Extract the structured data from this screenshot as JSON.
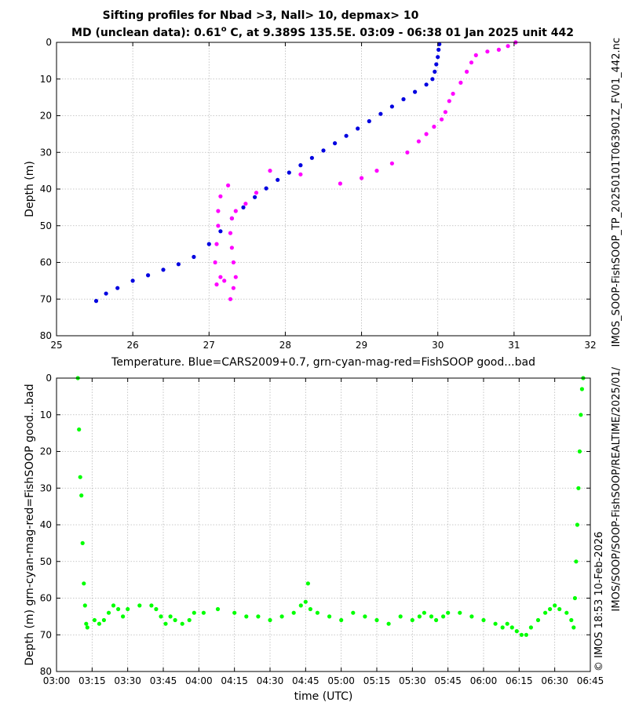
{
  "chart_data": [
    {
      "type": "scatter",
      "title_line1": "Sifting profiles for Nbad >3, Nall> 10, depmax> 10",
      "title_line2_pre": "MD (unclean data): 0.61",
      "title_line2_sup": "o",
      "title_line2_post": " C, at 9.389S 135.5E. 03:09 - 06:38 01 Jan 2025 unit 442",
      "xlabel": "Temperature. Blue=CARS2009+0.7, grn-cyan-mag-red=FishSOOP good...bad",
      "ylabel": "Depth (m)",
      "xlim": [
        25,
        32
      ],
      "ylim": [
        80,
        0
      ],
      "xticks": [
        "25",
        "26",
        "27",
        "28",
        "29",
        "30",
        "31",
        "32"
      ],
      "yticks": [
        "0",
        "10",
        "20",
        "30",
        "40",
        "50",
        "60",
        "70",
        "80"
      ],
      "grid": true,
      "series": [
        {
          "name": "CARS2009+0.7",
          "color": "#0000e0",
          "points": [
            [
              30.02,
              0.5
            ],
            [
              30.01,
              2
            ],
            [
              30.0,
              4
            ],
            [
              29.98,
              6
            ],
            [
              29.96,
              8
            ],
            [
              29.93,
              10
            ],
            [
              29.85,
              11.5
            ],
            [
              29.7,
              13.5
            ],
            [
              29.55,
              15.5
            ],
            [
              29.4,
              17.5
            ],
            [
              29.25,
              19.5
            ],
            [
              29.1,
              21.5
            ],
            [
              28.95,
              23.5
            ],
            [
              28.8,
              25.5
            ],
            [
              28.65,
              27.5
            ],
            [
              28.5,
              29.5
            ],
            [
              28.35,
              31.5
            ],
            [
              28.2,
              33.5
            ],
            [
              28.05,
              35.5
            ],
            [
              27.9,
              37.5
            ],
            [
              27.75,
              39.8
            ],
            [
              27.6,
              42.2
            ],
            [
              27.45,
              45
            ],
            [
              27.3,
              48
            ],
            [
              27.15,
              51.5
            ],
            [
              27.0,
              55
            ],
            [
              26.8,
              58.5
            ],
            [
              26.6,
              60.5
            ],
            [
              26.4,
              62
            ],
            [
              26.2,
              63.5
            ],
            [
              26.0,
              65
            ],
            [
              25.8,
              67
            ],
            [
              25.65,
              68.5
            ],
            [
              25.52,
              70.5
            ]
          ]
        },
        {
          "name": "FishSOOP profile",
          "color": "#ff00ff",
          "points": [
            [
              31.02,
              0
            ],
            [
              30.92,
              1
            ],
            [
              30.8,
              2
            ],
            [
              30.65,
              2.5
            ],
            [
              30.5,
              3.5
            ],
            [
              30.44,
              5.5
            ],
            [
              30.38,
              8
            ],
            [
              30.3,
              11
            ],
            [
              30.2,
              14
            ],
            [
              30.15,
              16
            ],
            [
              30.1,
              19
            ],
            [
              30.05,
              21
            ],
            [
              29.95,
              23
            ],
            [
              29.85,
              25
            ],
            [
              29.75,
              27
            ],
            [
              29.6,
              30
            ],
            [
              29.4,
              33
            ],
            [
              29.2,
              35
            ],
            [
              29.0,
              37
            ],
            [
              28.72,
              38.5
            ],
            [
              28.2,
              36
            ],
            [
              27.8,
              35
            ],
            [
              27.62,
              41
            ],
            [
              27.48,
              44
            ],
            [
              27.35,
              46
            ],
            [
              27.3,
              48
            ],
            [
              27.28,
              52
            ],
            [
              27.3,
              56
            ],
            [
              27.32,
              60
            ],
            [
              27.35,
              64
            ],
            [
              27.32,
              67
            ],
            [
              27.28,
              70
            ],
            [
              27.2,
              65
            ],
            [
              27.15,
              64
            ],
            [
              27.1,
              66
            ],
            [
              27.08,
              60
            ],
            [
              27.1,
              55
            ],
            [
              27.12,
              50
            ],
            [
              27.12,
              46
            ],
            [
              27.15,
              42
            ],
            [
              27.25,
              39
            ]
          ]
        }
      ]
    },
    {
      "type": "scatter",
      "xlabel": "time (UTC)",
      "ylabel": "Depth (m) grn-cyan-mag-red=FishSOOP good...bad",
      "xlim": [
        0,
        225
      ],
      "ylim": [
        80,
        0
      ],
      "xticks": [
        "03:00",
        "03:15",
        "03:30",
        "03:45",
        "04:00",
        "04:15",
        "04:30",
        "04:45",
        "05:00",
        "05:15",
        "05:30",
        "05:45",
        "06:00",
        "06:15",
        "06:30",
        "06:45"
      ],
      "yticks": [
        "0",
        "10",
        "20",
        "30",
        "40",
        "50",
        "60",
        "70",
        "80"
      ],
      "grid": true,
      "series": [
        {
          "name": "FishSOOP good",
          "color": "#00ff00",
          "points": [
            [
              9,
              0
            ],
            [
              9.5,
              14
            ],
            [
              10,
              27
            ],
            [
              10.5,
              32
            ],
            [
              11,
              45
            ],
            [
              11.5,
              56
            ],
            [
              12,
              62
            ],
            [
              12.5,
              67
            ],
            [
              13,
              68
            ],
            [
              16,
              66
            ],
            [
              18,
              67
            ],
            [
              20,
              66
            ],
            [
              22,
              64
            ],
            [
              24,
              62
            ],
            [
              26,
              63
            ],
            [
              28,
              65
            ],
            [
              30,
              63
            ],
            [
              35,
              62
            ],
            [
              40,
              62
            ],
            [
              42,
              63
            ],
            [
              44,
              65
            ],
            [
              46,
              67
            ],
            [
              48,
              65
            ],
            [
              50,
              66
            ],
            [
              53,
              67
            ],
            [
              56,
              66
            ],
            [
              58,
              64
            ],
            [
              62,
              64
            ],
            [
              68,
              63
            ],
            [
              75,
              64
            ],
            [
              80,
              65
            ],
            [
              85,
              65
            ],
            [
              90,
              66
            ],
            [
              95,
              65
            ],
            [
              100,
              64
            ],
            [
              103,
              62
            ],
            [
              105,
              61
            ],
            [
              106,
              56
            ],
            [
              107,
              63
            ],
            [
              110,
              64
            ],
            [
              115,
              65
            ],
            [
              120,
              66
            ],
            [
              125,
              64
            ],
            [
              130,
              65
            ],
            [
              135,
              66
            ],
            [
              140,
              67
            ],
            [
              145,
              65
            ],
            [
              150,
              66
            ],
            [
              153,
              65
            ],
            [
              155,
              64
            ],
            [
              158,
              65
            ],
            [
              160,
              66
            ],
            [
              163,
              65
            ],
            [
              165,
              64
            ],
            [
              170,
              64
            ],
            [
              175,
              65
            ],
            [
              180,
              66
            ],
            [
              185,
              67
            ],
            [
              188,
              68
            ],
            [
              190,
              67
            ],
            [
              192,
              68
            ],
            [
              194,
              69
            ],
            [
              196,
              70
            ],
            [
              198,
              70
            ],
            [
              200,
              68
            ],
            [
              203,
              66
            ],
            [
              206,
              64
            ],
            [
              208,
              63
            ],
            [
              210,
              62
            ],
            [
              212,
              63
            ],
            [
              215,
              64
            ],
            [
              217,
              66
            ],
            [
              218,
              68
            ],
            [
              218.5,
              60
            ],
            [
              219,
              50
            ],
            [
              219.5,
              40
            ],
            [
              220,
              30
            ],
            [
              220.5,
              20
            ],
            [
              221,
              10
            ],
            [
              221.5,
              3
            ],
            [
              222,
              0
            ]
          ]
        }
      ]
    }
  ],
  "side_text_top": "IMOS_SOOP-FishSOOP_TP_20250101T063901Z_FV01_442.nc",
  "side_text_bottom": "IMOS/SOOP/SOOP-FishSOOP/REALTIME/2025/01/",
  "side_text_copyright": "© IMOS 18:53 10-Feb-2026"
}
